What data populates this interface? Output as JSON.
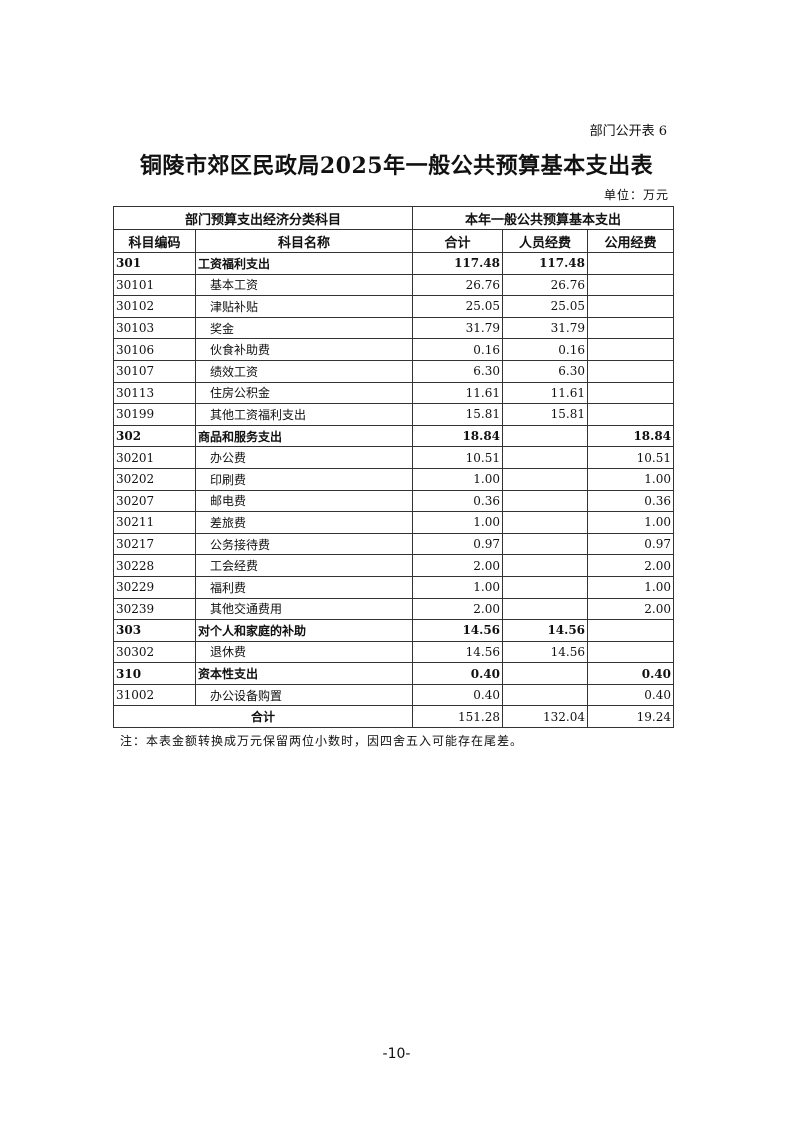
{
  "tag": "部门公开表 6",
  "title": "铜陵市郊区民政局2025年一般公共预算基本支出表",
  "unit": "单位：万元",
  "table": {
    "group_header_left": "部门预算支出经济分类科目",
    "group_header_right": "本年一般公共预算基本支出",
    "columns": [
      "科目编码",
      "科目名称",
      "合计",
      "人员经费",
      "公用经费"
    ],
    "rows": [
      {
        "code": "301",
        "name": "工资福利支出",
        "total": "117.48",
        "personnel": "117.48",
        "public": "",
        "bold": true
      },
      {
        "code": "30101",
        "name": "基本工资",
        "total": "26.76",
        "personnel": "26.76",
        "public": ""
      },
      {
        "code": "30102",
        "name": "津贴补贴",
        "total": "25.05",
        "personnel": "25.05",
        "public": ""
      },
      {
        "code": "30103",
        "name": "奖金",
        "total": "31.79",
        "personnel": "31.79",
        "public": ""
      },
      {
        "code": "30106",
        "name": "伙食补助费",
        "total": "0.16",
        "personnel": "0.16",
        "public": ""
      },
      {
        "code": "30107",
        "name": "绩效工资",
        "total": "6.30",
        "personnel": "6.30",
        "public": ""
      },
      {
        "code": "30113",
        "name": "住房公积金",
        "total": "11.61",
        "personnel": "11.61",
        "public": ""
      },
      {
        "code": "30199",
        "name": "其他工资福利支出",
        "total": "15.81",
        "personnel": "15.81",
        "public": ""
      },
      {
        "code": "302",
        "name": "商品和服务支出",
        "total": "18.84",
        "personnel": "",
        "public": "18.84",
        "bold": true
      },
      {
        "code": "30201",
        "name": "办公费",
        "total": "10.51",
        "personnel": "",
        "public": "10.51"
      },
      {
        "code": "30202",
        "name": "印刷费",
        "total": "1.00",
        "personnel": "",
        "public": "1.00"
      },
      {
        "code": "30207",
        "name": "邮电费",
        "total": "0.36",
        "personnel": "",
        "public": "0.36"
      },
      {
        "code": "30211",
        "name": "差旅费",
        "total": "1.00",
        "personnel": "",
        "public": "1.00"
      },
      {
        "code": "30217",
        "name": "公务接待费",
        "total": "0.97",
        "personnel": "",
        "public": "0.97"
      },
      {
        "code": "30228",
        "name": "工会经费",
        "total": "2.00",
        "personnel": "",
        "public": "2.00"
      },
      {
        "code": "30229",
        "name": "福利费",
        "total": "1.00",
        "personnel": "",
        "public": "1.00"
      },
      {
        "code": "30239",
        "name": "其他交通费用",
        "total": "2.00",
        "personnel": "",
        "public": "2.00"
      },
      {
        "code": "303",
        "name": "对个人和家庭的补助",
        "total": "14.56",
        "personnel": "14.56",
        "public": "",
        "bold": true
      },
      {
        "code": "30302",
        "name": "退休费",
        "total": "14.56",
        "personnel": "14.56",
        "public": ""
      },
      {
        "code": "310",
        "name": "资本性支出",
        "total": "0.40",
        "personnel": "",
        "public": "0.40",
        "bold": true
      },
      {
        "code": "31002",
        "name": "办公设备购置",
        "total": "0.40",
        "personnel": "",
        "public": "0.40"
      }
    ],
    "total_row": {
      "label": "合计",
      "total": "151.28",
      "personnel": "132.04",
      "public": "19.24"
    }
  },
  "note": "注：本表金额转换成万元保留两位小数时，因四舍五入可能存在尾差。",
  "page_number": "-10-"
}
